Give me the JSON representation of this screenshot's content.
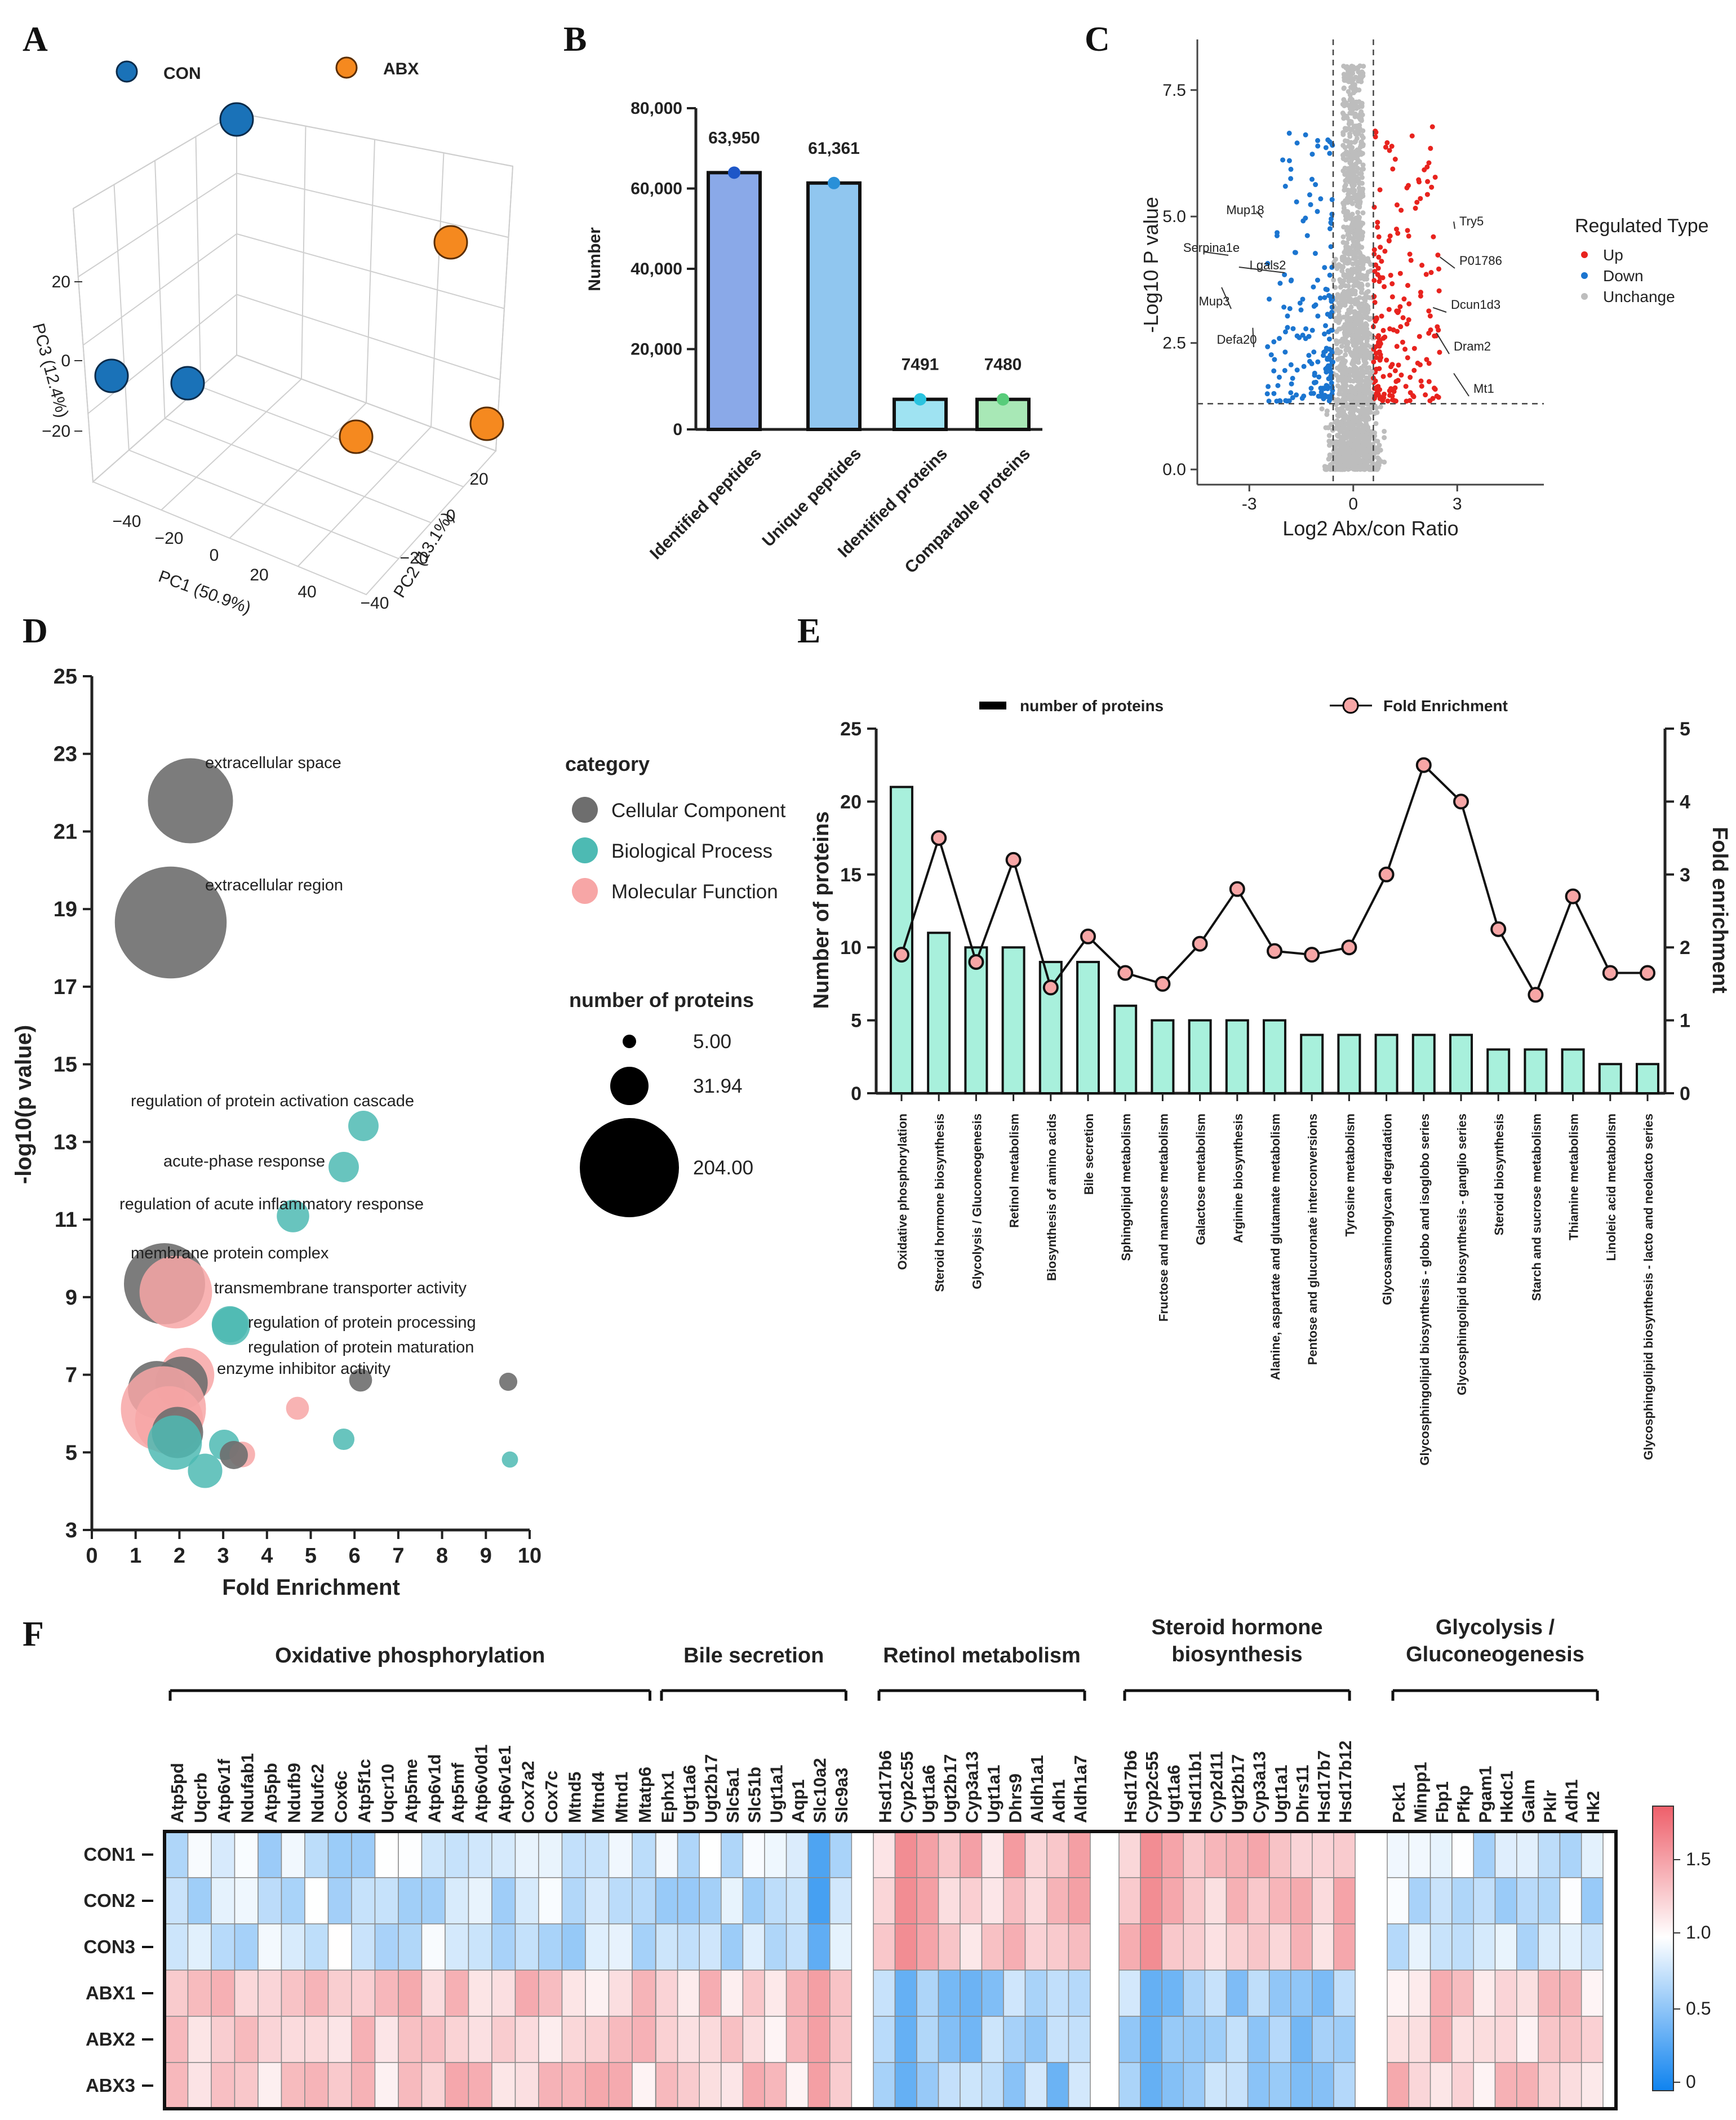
{
  "panels": {
    "A": "A",
    "B": "B",
    "C": "C",
    "D": "D",
    "E": "E",
    "F": "F"
  },
  "colors": {
    "con": "#1a72b8",
    "abx": "#f5891f",
    "cc": "#6e6e6e",
    "bp": "#4dbab3",
    "mf": "#f7a6a6",
    "bar_e": "#a8f0dc",
    "up": "#e8231e",
    "down": "#1b75d0",
    "unchange": "#bdbdbd",
    "barB": [
      "#8aa9e8",
      "#90c6ef",
      "#9fe3f2",
      "#a8e8b6"
    ],
    "dotB": [
      "#1e57c8",
      "#2a90d8",
      "#2ac3df",
      "#58cc7a"
    ]
  },
  "chart_data": [
    {
      "id": "A",
      "type": "scatter",
      "subtype": "3d-pca",
      "legend": [
        {
          "name": "CON"
        },
        {
          "name": "ABX"
        }
      ],
      "xlabel": "PC1 (50.9%)",
      "ylabel": "PC2 (13.1%)",
      "zlabel": "PC3 (12.4%)",
      "pc1_ticks": [
        "−40",
        "−20",
        "0",
        "20",
        "40"
      ],
      "pc2_ticks": [
        "20",
        "0",
        "−20",
        "−40"
      ],
      "pc3_ticks": [
        "20",
        "0",
        "−20"
      ],
      "points": [
        {
          "group": "CON",
          "pc1": -40,
          "pc2": -30,
          "pc3": 45
        },
        {
          "group": "CON",
          "pc1": -45,
          "pc2": 10,
          "pc3": 0
        },
        {
          "group": "CON",
          "pc1": -25,
          "pc2": 5,
          "pc3": -5
        },
        {
          "group": "ABX",
          "pc1": 40,
          "pc2": -20,
          "pc3": 25
        },
        {
          "group": "ABX",
          "pc1": 30,
          "pc2": 5,
          "pc3": -20
        },
        {
          "group": "ABX",
          "pc1": 45,
          "pc2": 25,
          "pc3": -15
        }
      ]
    },
    {
      "id": "B",
      "type": "bar",
      "ylabel": "Number",
      "categories": [
        "Identified peptides",
        "Unique peptides",
        "Identified proteins",
        "Comparable proteins"
      ],
      "values": [
        63950,
        61361,
        7491,
        7480
      ],
      "value_labels": [
        "63,950",
        "61,361",
        "7491",
        "7480"
      ],
      "ylim": [
        0,
        80000
      ],
      "yticks": [
        0,
        20000,
        40000,
        60000,
        80000
      ],
      "ytick_labels": [
        "0",
        "20,000",
        "40,000",
        "60,000",
        "80,000"
      ]
    },
    {
      "id": "C",
      "type": "scatter",
      "subtype": "volcano",
      "xlabel": "Log2 Abx/con Ratio",
      "ylabel": "-Log10 P value",
      "xlim": [
        -4.5,
        5.5
      ],
      "ylim": [
        -0.3,
        8.5
      ],
      "xticks": [
        -3,
        0,
        3
      ],
      "xtick_labels": [
        "-3",
        "0",
        "3"
      ],
      "yticks": [
        0.0,
        2.5,
        5.0,
        7.5
      ],
      "ytick_labels": [
        "0.0",
        "2.5",
        "5.0",
        "7.5"
      ],
      "fc_cutoff": 0.58,
      "p_cutoff_log": 1.3,
      "legend_title": "Regulated Type",
      "legend": [
        "Up",
        "Down",
        "Unchange"
      ],
      "annotations": [
        {
          "label": "Mup18",
          "x": -2.8,
          "y": 5.1
        },
        {
          "label": "Serpina1e",
          "x": -4.3,
          "y": 4.3
        },
        {
          "label": "Lgals2",
          "x": -3.3,
          "y": 4.0
        },
        {
          "label": "Mup3",
          "x": -3.8,
          "y": 3.6
        },
        {
          "label": "Defa20",
          "x": -2.9,
          "y": 2.8
        },
        {
          "label": "Try5",
          "x": 2.9,
          "y": 4.9
        },
        {
          "label": "P01786",
          "x": 2.5,
          "y": 4.2
        },
        {
          "label": "Dcun1d3",
          "x": 2.3,
          "y": 3.2
        },
        {
          "label": "Dram2",
          "x": 2.4,
          "y": 2.7
        },
        {
          "label": "Mt1",
          "x": 2.9,
          "y": 1.9
        }
      ]
    },
    {
      "id": "D",
      "type": "scatter",
      "subtype": "bubble",
      "xlabel": "Fold Enrichment",
      "ylabel": "-log10(p value)",
      "xlim": [
        0,
        10
      ],
      "ylim": [
        3,
        25
      ],
      "xticks": [
        0,
        1,
        2,
        3,
        4,
        5,
        6,
        7,
        8,
        9,
        10
      ],
      "yticks": [
        3,
        5,
        7,
        9,
        11,
        13,
        15,
        17,
        19,
        21,
        23,
        25
      ],
      "legend_title": "category",
      "categories": [
        "Cellular Component",
        "Biological Process",
        "Molecular Function"
      ],
      "size_title": "number  of proteins",
      "size_legend": [
        {
          "value": 5.0,
          "label": "5.00"
        },
        {
          "value": 31.94,
          "label": "31.94"
        },
        {
          "value": 204.0,
          "label": "204.00"
        }
      ],
      "points": [
        {
          "cat": "CC",
          "x": 2.2,
          "y": 21.8,
          "n": 110,
          "label": "extracellular space"
        },
        {
          "cat": "CC",
          "x": 1.8,
          "y": 18.7,
          "n": 190,
          "label": "extracellular region"
        },
        {
          "cat": "BP",
          "x": 6.1,
          "y": 13.5,
          "n": 14,
          "label": "regulation of protein activation cascade"
        },
        {
          "cat": "BP",
          "x": 5.7,
          "y": 12.4,
          "n": 14,
          "label": "acute-phase response"
        },
        {
          "cat": "BP",
          "x": 4.5,
          "y": 11.2,
          "n": 16,
          "label": "regulation of acute inflammatory response"
        },
        {
          "cat": "CC",
          "x": 1.7,
          "y": 9.3,
          "n": 100,
          "label": "membrane protein complex"
        },
        {
          "cat": "MF",
          "x": 1.9,
          "y": 9.2,
          "n": 80,
          "label": "transmembrane transporter activity"
        },
        {
          "cat": "BP",
          "x": 3.1,
          "y": 8.4,
          "n": 22,
          "label": "regulation of protein processing"
        },
        {
          "cat": "BP",
          "x": 3.1,
          "y": 8.4,
          "n": 20,
          "label": "regulation of protein maturation"
        },
        {
          "cat": "MF",
          "x": 2.2,
          "y": 7.2,
          "n": 45,
          "label": "enzyme inhibitor activity"
        },
        {
          "cat": "CC",
          "x": 2.2,
          "y": 6.9,
          "n": 42,
          "label": ""
        },
        {
          "cat": "CC",
          "x": 1.7,
          "y": 6.7,
          "n": 50,
          "label": ""
        },
        {
          "cat": "MF",
          "x": 1.8,
          "y": 6.2,
          "n": 110,
          "label": ""
        },
        {
          "cat": "MF",
          "x": 1.9,
          "y": 6.0,
          "n": 70,
          "label": ""
        },
        {
          "cat": "CC",
          "x": 1.9,
          "y": 5.6,
          "n": 40,
          "label": ""
        },
        {
          "cat": "BP",
          "x": 1.9,
          "y": 5.5,
          "n": 45,
          "label": ""
        },
        {
          "cat": "BP",
          "x": 3.0,
          "y": 5.3,
          "n": 14,
          "label": ""
        },
        {
          "cat": "MF",
          "x": 3.3,
          "y": 5.1,
          "n": 10,
          "label": ""
        },
        {
          "cat": "CC",
          "x": 3.2,
          "y": 5.1,
          "n": 12,
          "label": ""
        },
        {
          "cat": "BP",
          "x": 2.5,
          "y": 4.6,
          "n": 18,
          "label": ""
        },
        {
          "cat": "MF",
          "x": 4.6,
          "y": 6.2,
          "n": 8,
          "label": ""
        },
        {
          "cat": "CC",
          "x": 6.1,
          "y": 7.0,
          "n": 8,
          "label": ""
        },
        {
          "cat": "BP",
          "x": 5.7,
          "y": 5.4,
          "n": 7,
          "label": ""
        },
        {
          "cat": "CC",
          "x": 9.5,
          "y": 6.9,
          "n": 5,
          "label": ""
        },
        {
          "cat": "BP",
          "x": 9.5,
          "y": 4.9,
          "n": 4,
          "label": ""
        }
      ]
    },
    {
      "id": "E",
      "type": "bar",
      "subtype": "bar-line-dual-axis",
      "legend": [
        "number of proteins",
        "Fold Enrichment"
      ],
      "ylabel": "Number of proteins",
      "y2label": "Fold enrichment",
      "ylim": [
        0,
        25
      ],
      "y2lim": [
        0,
        5
      ],
      "yticks": [
        0,
        5,
        10,
        15,
        20,
        25
      ],
      "y2ticks": [
        0,
        1,
        2,
        3,
        4,
        5
      ],
      "categories": [
        "Oxidative phosphorylation",
        "Steroid hormone biosynthesis",
        "Glycolysis / Gluconeogenesis",
        "Retinol metabolism",
        "Biosynthesis of amino acids",
        "Bile secretion",
        "Sphingolipid metabolism",
        "Fructose and mannose metabolism",
        "Galactose metabolism",
        "Arginine biosynthesis",
        "Alanine, aspartate and glutamate metabolism",
        "Pentose and glucuronate interconversions",
        "Tyrosine metabolism",
        "Glycosaminoglycan degradation",
        "Glycosphingolipid biosynthesis - globo and isoglobo series",
        "Glycosphingolipid biosynthesis - ganglio series",
        "Steroid biosynthesis",
        "Starch and sucrose metabolism",
        "Thiamine metabolism",
        "Linoleic acid metabolism",
        "Glycosphingolipid biosynthesis - lacto and neolacto series"
      ],
      "values": [
        21,
        11,
        10,
        10,
        9,
        9,
        6,
        5,
        5,
        5,
        5,
        4,
        4,
        4,
        4,
        4,
        3,
        3,
        3,
        2,
        2
      ],
      "fold": [
        1.9,
        3.5,
        1.8,
        3.2,
        1.45,
        2.15,
        1.65,
        1.5,
        2.05,
        2.8,
        1.95,
        1.9,
        2.0,
        3.0,
        4.5,
        4.0,
        2.25,
        1.35,
        2.7,
        1.65,
        1.65
      ]
    },
    {
      "id": "F",
      "type": "heatmap",
      "rows": [
        "CON1",
        "CON2",
        "CON3",
        "ABX1",
        "ABX2",
        "ABX3"
      ],
      "scale_ticks": [
        "0",
        "0.5",
        "1.0",
        "1.5"
      ],
      "scale_range": [
        0,
        1.85
      ],
      "groups": [
        {
          "title": "Oxidative phosphorylation",
          "genes": [
            "Atp5pd",
            "Uqcrb",
            "Atp6v1f",
            "Ndufab1",
            "Atp5pb",
            "Ndufb9",
            "Ndufc2",
            "Cox6c",
            "Atp5f1c",
            "Uqcr10",
            "Atp5me",
            "Atp6v1d",
            "Atp5mf",
            "Atp6v0d1",
            "Atp6v1e1",
            "Cox7a2",
            "Cox7c",
            "Mtnd5",
            "Mtnd4",
            "Mtnd1",
            "Mtatp6"
          ],
          "dir": 1
        },
        {
          "title": "Bile secretion",
          "genes": [
            "Ephx1",
            "Ugt1a6",
            "Ugt2b17",
            "Slc5a1",
            "Slc51b",
            "Ugt1a1",
            "Aqp1",
            "Slc10a2",
            "Slc9a3"
          ],
          "dir": 1
        },
        {
          "title": "Retinol metabolism",
          "genes": [
            "Hsd17b6",
            "Cyp2c55",
            "Ugt1a6",
            "Ugt2b17",
            "Cyp3a13",
            "Ugt1a1",
            "Dhrs9",
            "Aldh1a1",
            "Adh1",
            "Aldh1a7"
          ],
          "dir": -1
        },
        {
          "title": "Steroid hormone biosynthesis",
          "title_lines": [
            "Steroid hormone",
            "biosynthesis"
          ],
          "genes": [
            "Hsd17b6",
            "Cyp2c55",
            "Ugt1a6",
            "Hsd11b1",
            "Cyp2d11",
            "Ugt2b17",
            "Cyp3a13",
            "Ugt1a1",
            "Dhrs11",
            "Hsd17b7",
            "Hsd17b12"
          ],
          "dir": -1
        },
        {
          "title": "Glycolysis / Gluconeogenesis",
          "title_lines": [
            "Glycolysis /",
            "Gluconeogenesis"
          ],
          "genes": [
            "Pck1",
            "Minpp1",
            "Fbp1",
            "Pfkp",
            "Pgam1",
            "Hkdc1",
            "Galm",
            "Pklr",
            "Adh1",
            "Hk2"
          ],
          "dir": 1
        }
      ]
    }
  ]
}
